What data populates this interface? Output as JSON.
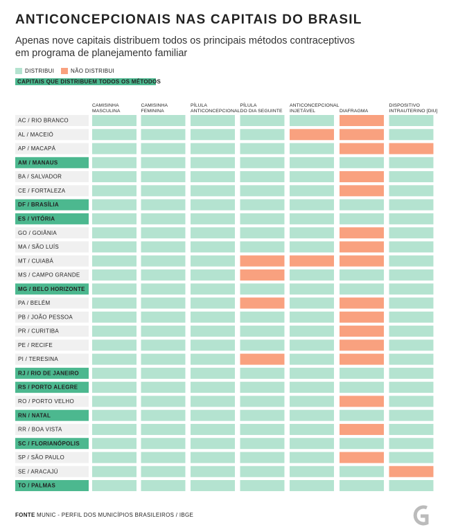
{
  "header": {
    "title": "ANTICONCEPCIONAIS NAS CAPITAIS DO BRASIL",
    "subtitle": [
      "Apenas nove capitais distribuem todos os principais métodos contraceptivos",
      "em programa de planejamento familiar"
    ]
  },
  "legend": {
    "distribui": "DISTRIBUI",
    "nao_distribui": "NÃO DISTRIBUI",
    "highlight": "CAPITAIS QUE DISTRIBUEM TODOS OS MÉTODOS"
  },
  "colors": {
    "distribui": "#b4e3d0",
    "nao_distribui": "#f9a17f",
    "highlight": "#4cb88f",
    "row_label": "#f0f0f0"
  },
  "table": {
    "columns": [
      [
        "CAMISINHA",
        "MASCULINA"
      ],
      [
        "CAMISINHA",
        "FEMININA"
      ],
      [
        "PÍLULA",
        "ANTICONCEPCIONAL"
      ],
      [
        "PÍLULA",
        "DO DIA SEGUINTE"
      ],
      [
        "ANTICONCEPCIONAL",
        "INJETÁVEL"
      ],
      [
        "DIAFRAGMA"
      ],
      [
        "DISPOSITIVO",
        "INTRAUTERINO [DIU]"
      ]
    ],
    "rows": [
      {
        "label": "AC / RIO BRANCO",
        "distributes": [
          1,
          1,
          1,
          1,
          1,
          0,
          1
        ]
      },
      {
        "label": "AL / MACEIÓ",
        "distributes": [
          1,
          1,
          1,
          1,
          0,
          0,
          1
        ]
      },
      {
        "label": "AP / MACAPÁ",
        "distributes": [
          1,
          1,
          1,
          1,
          1,
          0,
          0
        ]
      },
      {
        "label": "AM / MANAUS",
        "distributes": [
          1,
          1,
          1,
          1,
          1,
          1,
          1
        ]
      },
      {
        "label": "BA / SALVADOR",
        "distributes": [
          1,
          1,
          1,
          1,
          1,
          0,
          1
        ]
      },
      {
        "label": "CE / FORTALEZA",
        "distributes": [
          1,
          1,
          1,
          1,
          1,
          0,
          1
        ]
      },
      {
        "label": "DF / BRASÍLIA",
        "distributes": [
          1,
          1,
          1,
          1,
          1,
          1,
          1
        ]
      },
      {
        "label": "ES / VITÓRIA",
        "distributes": [
          1,
          1,
          1,
          1,
          1,
          1,
          1
        ]
      },
      {
        "label": "GO / GOIÂNIA",
        "distributes": [
          1,
          1,
          1,
          1,
          1,
          0,
          1
        ]
      },
      {
        "label": "MA / SÃO LUÍS",
        "distributes": [
          1,
          1,
          1,
          1,
          1,
          0,
          1
        ]
      },
      {
        "label": "MT / CUIABÁ",
        "distributes": [
          1,
          1,
          1,
          0,
          0,
          0,
          1
        ]
      },
      {
        "label": "MS / CAMPO GRANDE",
        "distributes": [
          1,
          1,
          1,
          0,
          1,
          1,
          1
        ]
      },
      {
        "label": "MG / BELO HORIZONTE",
        "distributes": [
          1,
          1,
          1,
          1,
          1,
          1,
          1
        ]
      },
      {
        "label": "PA / BELÉM",
        "distributes": [
          1,
          1,
          1,
          0,
          1,
          0,
          1
        ]
      },
      {
        "label": "PB / JOÃO PESSOA",
        "distributes": [
          1,
          1,
          1,
          1,
          1,
          0,
          1
        ]
      },
      {
        "label": "PR / CURITIBA",
        "distributes": [
          1,
          1,
          1,
          1,
          1,
          0,
          1
        ]
      },
      {
        "label": "PE / RECIFE",
        "distributes": [
          1,
          1,
          1,
          1,
          1,
          0,
          1
        ]
      },
      {
        "label": "PI / TERESINA",
        "distributes": [
          1,
          1,
          1,
          0,
          1,
          0,
          1
        ]
      },
      {
        "label": "RJ / RIO DE JANEIRO",
        "distributes": [
          1,
          1,
          1,
          1,
          1,
          1,
          1
        ]
      },
      {
        "label": "RS / PORTO ALEGRE",
        "distributes": [
          1,
          1,
          1,
          1,
          1,
          1,
          1
        ]
      },
      {
        "label": "RO /  PORTO VELHO",
        "distributes": [
          1,
          1,
          1,
          1,
          1,
          0,
          1
        ]
      },
      {
        "label": "RN / NATAL",
        "distributes": [
          1,
          1,
          1,
          1,
          1,
          1,
          1
        ]
      },
      {
        "label": "RR / BOA VISTA",
        "distributes": [
          1,
          1,
          1,
          1,
          1,
          0,
          1
        ]
      },
      {
        "label": "SC / FLORIANÓPOLIS",
        "distributes": [
          1,
          1,
          1,
          1,
          1,
          1,
          1
        ]
      },
      {
        "label": "SP / SÃO PAULO",
        "distributes": [
          1,
          1,
          1,
          1,
          1,
          0,
          1
        ]
      },
      {
        "label": "SE / ARACAJÚ",
        "distributes": [
          1,
          1,
          1,
          1,
          1,
          1,
          0
        ]
      },
      {
        "label": "TO / PALMAS",
        "distributes": [
          1,
          1,
          1,
          1,
          1,
          1,
          1
        ]
      }
    ]
  },
  "footer": {
    "source_label": "FONTE",
    "source": "MUNIC - PERFIL DOS MUNICÍPIOS BRASILEIROS / IBGE"
  }
}
